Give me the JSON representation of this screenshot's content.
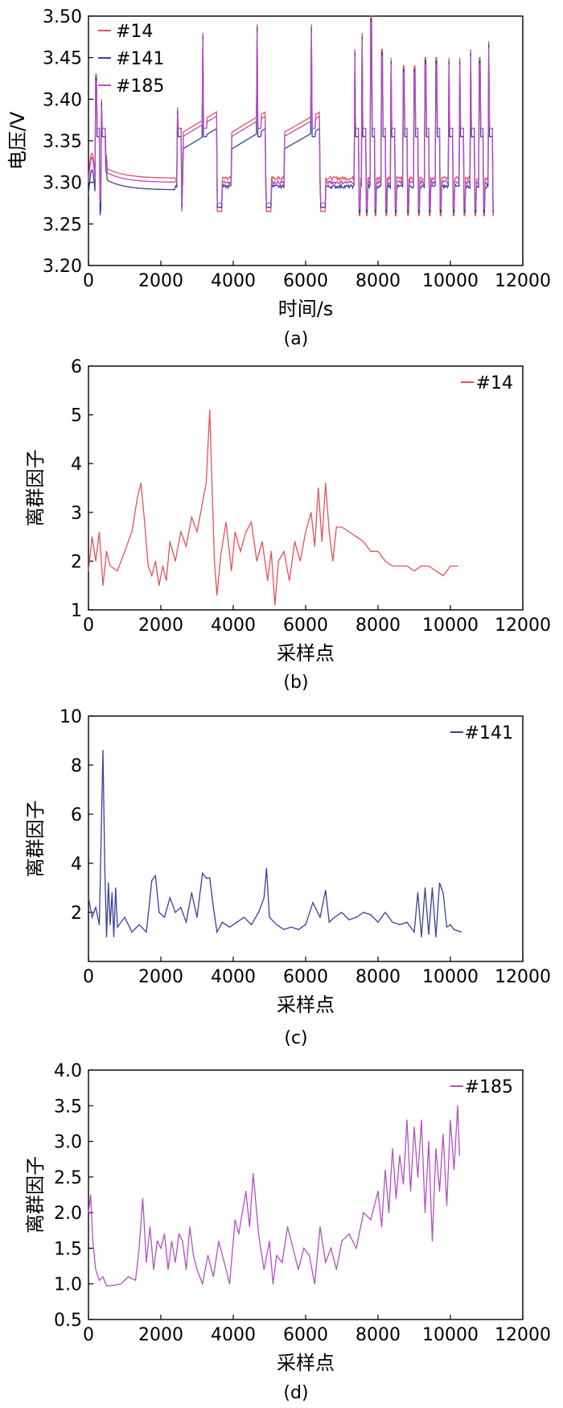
{
  "chart_data": [
    {
      "type": "line",
      "panel_label": "(a)",
      "xlabel": "时间/s",
      "ylabel": "电压/V",
      "xlim": [
        0,
        12000
      ],
      "ylim": [
        3.2,
        3.5
      ],
      "xticks": [
        0,
        2000,
        4000,
        6000,
        8000,
        10000,
        12000
      ],
      "yticks": [
        "3.20",
        "3.25",
        "3.30",
        "3.35",
        "3.40",
        "3.45",
        "3.50"
      ],
      "legend_position": "top-left",
      "series": [
        {
          "name": "#14",
          "color": "#e8505b"
        },
        {
          "name": "#141",
          "color": "#3b3f9c"
        },
        {
          "name": "#185",
          "color": "#b34fc4"
        }
      ],
      "description_of_shape": {
        "rest_levels": {
          "#14": 3.305,
          "#141": 3.295,
          "#185": 3.3
        },
        "spike_times": [
          200,
          350,
          2450,
          3150,
          4650,
          6150,
          7350,
          7550,
          7800,
          8100,
          8350,
          8700,
          9000,
          9300,
          9600,
          9950,
          10250,
          10550,
          10800,
          11050
        ],
        "spike_peaks": [
          3.43,
          3.4,
          3.39,
          3.48,
          3.49,
          3.49,
          3.46,
          3.48,
          3.5,
          3.46,
          3.45,
          3.44,
          3.44,
          3.45,
          3.45,
          3.45,
          3.45,
          3.46,
          3.45,
          3.47
        ]
      }
    },
    {
      "type": "line",
      "panel_label": "(b)",
      "xlabel": "采样点",
      "ylabel": "离群因子",
      "xlim": [
        0,
        12000
      ],
      "ylim": [
        1,
        6
      ],
      "xticks": [
        0,
        2000,
        4000,
        6000,
        8000,
        10000,
        12000
      ],
      "yticks": [
        1,
        2,
        3,
        4,
        5,
        6
      ],
      "legend_position": "top-right",
      "series": [
        {
          "name": "#14",
          "color": "#e8505b",
          "x": [
            0,
            100,
            200,
            300,
            400,
            500,
            600,
            800,
            1000,
            1200,
            1350,
            1450,
            1550,
            1650,
            1750,
            1850,
            1950,
            2050,
            2150,
            2250,
            2400,
            2550,
            2700,
            2850,
            3000,
            3150,
            3250,
            3350,
            3420,
            3480,
            3550,
            3650,
            3800,
            3950,
            4050,
            4200,
            4350,
            4500,
            4650,
            4800,
            4950,
            5050,
            5150,
            5250,
            5400,
            5550,
            5700,
            5850,
            6000,
            6150,
            6250,
            6350,
            6450,
            6550,
            6650,
            6750,
            6850,
            7000,
            7200,
            7400,
            7600,
            7800,
            8000,
            8200,
            8400,
            8600,
            8800,
            9000,
            9200,
            9400,
            9600,
            9800,
            10000,
            10200
          ],
          "values": [
            1.8,
            2.5,
            2.0,
            2.6,
            1.5,
            2.2,
            1.9,
            1.8,
            2.2,
            2.6,
            3.3,
            3.6,
            2.8,
            1.9,
            1.7,
            2.0,
            1.5,
            1.9,
            1.6,
            2.4,
            2.0,
            2.6,
            2.3,
            2.9,
            2.6,
            3.2,
            3.6,
            5.1,
            3.4,
            2.0,
            1.3,
            2.1,
            2.8,
            1.8,
            2.6,
            2.2,
            2.6,
            2.8,
            2.0,
            2.4,
            1.6,
            2.2,
            1.1,
            2.0,
            2.2,
            1.6,
            2.4,
            2.0,
            2.6,
            3.0,
            2.3,
            3.5,
            2.4,
            3.6,
            2.6,
            2.0,
            2.7,
            2.7,
            2.6,
            2.5,
            2.4,
            2.2,
            2.2,
            2.0,
            1.9,
            1.9,
            1.9,
            1.8,
            1.9,
            1.9,
            1.8,
            1.7,
            1.9,
            1.9
          ]
        }
      ]
    },
    {
      "type": "line",
      "panel_label": "(c)",
      "xlabel": "采样点",
      "ylabel": "离群因子",
      "xlim": [
        0,
        12000
      ],
      "ylim": [
        0,
        10
      ],
      "xticks": [
        0,
        2000,
        4000,
        6000,
        8000,
        10000,
        12000
      ],
      "yticks": [
        2,
        4,
        6,
        8,
        10
      ],
      "legend_position": "top-right",
      "series": [
        {
          "name": "#141",
          "color": "#3b3f9c",
          "x": [
            0,
            100,
            200,
            300,
            400,
            450,
            500,
            550,
            600,
            650,
            700,
            750,
            800,
            1000,
            1200,
            1400,
            1600,
            1750,
            1850,
            1950,
            2100,
            2250,
            2400,
            2550,
            2700,
            2850,
            3000,
            3150,
            3250,
            3350,
            3450,
            3550,
            3700,
            3900,
            4100,
            4300,
            4500,
            4700,
            4850,
            4920,
            5000,
            5200,
            5400,
            5600,
            5800,
            6000,
            6200,
            6400,
            6550,
            6650,
            6800,
            7000,
            7200,
            7400,
            7600,
            7800,
            8000,
            8200,
            8400,
            8600,
            8800,
            9000,
            9100,
            9200,
            9300,
            9400,
            9500,
            9600,
            9700,
            9800,
            9900,
            10000,
            10100,
            10300
          ],
          "values": [
            2.6,
            1.8,
            2.2,
            1.5,
            8.6,
            3.8,
            1.0,
            3.2,
            1.5,
            2.8,
            1.0,
            3.0,
            1.4,
            1.8,
            1.2,
            1.5,
            1.2,
            3.3,
            3.5,
            2.0,
            1.8,
            2.6,
            2.0,
            2.2,
            1.6,
            2.8,
            1.8,
            3.6,
            3.4,
            3.4,
            2.2,
            1.2,
            1.6,
            1.4,
            1.6,
            1.8,
            1.5,
            2.0,
            2.6,
            3.8,
            1.8,
            1.5,
            1.3,
            1.4,
            1.3,
            1.5,
            2.4,
            1.8,
            2.9,
            1.6,
            1.8,
            2.0,
            1.7,
            1.8,
            2.0,
            1.9,
            1.6,
            2.0,
            1.6,
            1.5,
            1.6,
            1.2,
            2.8,
            1.0,
            3.0,
            1.1,
            3.0,
            1.0,
            3.2,
            2.8,
            1.4,
            1.5,
            1.3,
            1.2
          ]
        }
      ]
    },
    {
      "type": "line",
      "panel_label": "(d)",
      "xlabel": "采样点",
      "ylabel": "离群因子",
      "xlim": [
        0,
        12000
      ],
      "ylim": [
        0.5,
        4.0
      ],
      "xticks": [
        0,
        2000,
        4000,
        6000,
        8000,
        10000,
        12000
      ],
      "yticks": [
        "0.5",
        "1.0",
        "1.5",
        "2.0",
        "2.5",
        "3.0",
        "3.5",
        "4.0"
      ],
      "legend_position": "top-right",
      "series": [
        {
          "name": "#185",
          "color": "#b34fc4",
          "x": [
            0,
            60,
            120,
            200,
            300,
            400,
            500,
            700,
            900,
            1100,
            1300,
            1400,
            1500,
            1600,
            1700,
            1800,
            1900,
            2000,
            2100,
            2200,
            2300,
            2400,
            2500,
            2600,
            2700,
            2800,
            2900,
            3000,
            3150,
            3300,
            3450,
            3600,
            3750,
            3900,
            4050,
            4150,
            4250,
            4350,
            4450,
            4550,
            4700,
            4850,
            5000,
            5100,
            5200,
            5350,
            5500,
            5650,
            5800,
            5950,
            6100,
            6250,
            6400,
            6550,
            6700,
            6850,
            7000,
            7200,
            7400,
            7600,
            7800,
            8000,
            8100,
            8200,
            8300,
            8400,
            8500,
            8600,
            8700,
            8800,
            8900,
            9000,
            9100,
            9200,
            9300,
            9400,
            9500,
            9600,
            9700,
            9800,
            9900,
            10000,
            10100,
            10200,
            10250
          ],
          "values": [
            2.0,
            2.25,
            1.6,
            1.2,
            1.05,
            1.1,
            0.97,
            0.98,
            1.0,
            1.1,
            1.05,
            1.5,
            2.2,
            1.3,
            1.8,
            1.2,
            1.6,
            1.5,
            1.7,
            1.2,
            1.6,
            1.3,
            1.7,
            1.6,
            1.2,
            1.8,
            1.4,
            1.2,
            1.0,
            1.4,
            1.1,
            1.6,
            1.3,
            1.0,
            1.9,
            1.7,
            2.0,
            2.3,
            1.8,
            2.55,
            1.7,
            1.2,
            1.6,
            1.0,
            1.4,
            1.3,
            1.8,
            1.5,
            1.2,
            1.5,
            1.4,
            1.0,
            1.8,
            1.3,
            1.5,
            1.2,
            1.6,
            1.7,
            1.5,
            2.0,
            1.9,
            2.3,
            1.8,
            2.6,
            2.0,
            2.9,
            2.2,
            2.8,
            2.4,
            3.3,
            2.3,
            3.2,
            2.5,
            3.3,
            2.0,
            3.0,
            1.6,
            2.9,
            2.3,
            3.1,
            2.1,
            3.3,
            2.6,
            3.5,
            2.8
          ]
        }
      ]
    }
  ]
}
